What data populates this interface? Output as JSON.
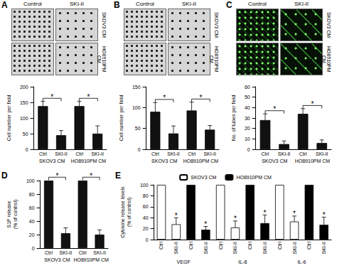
{
  "chart_data": [
    {
      "panel_label": "A",
      "type": "bar",
      "image_labels": {
        "columns": [
          "Control",
          "SKI-II"
        ],
        "rows": [
          "SKOV3 CM",
          "HO8910PM CM"
        ]
      },
      "y_label": "Cell number per field",
      "categories": [
        "Ctrl",
        "SKI-II",
        "Ctrl",
        "SKI-II"
      ],
      "group_labels": [
        "SKOV3 CM",
        "HO8910PM CM"
      ],
      "values": [
        138,
        45,
        138,
        50
      ],
      "errors": [
        15,
        15,
        15,
        25
      ],
      "color": "#111111",
      "ylim": [
        0,
        200
      ],
      "yticks": [
        0,
        50,
        100,
        150,
        200
      ],
      "annotations": [
        {
          "from": 0,
          "to": 1,
          "text": "*"
        },
        {
          "from": 2,
          "to": 3,
          "text": "*"
        }
      ]
    },
    {
      "panel_label": "B",
      "type": "bar",
      "image_labels": {
        "columns": [
          "Control",
          "SKI-II"
        ],
        "rows": [
          "SKOV3 CM",
          "HO8910PM CM"
        ]
      },
      "y_label": "Cell number per field",
      "categories": [
        "Ctrl",
        "SKI-II",
        "Ctrl",
        "SKI-II"
      ],
      "group_labels": [
        "SKOV3 CM",
        "HO8910PM CM"
      ],
      "values": [
        90,
        38,
        93,
        47
      ],
      "errors": [
        22,
        18,
        20,
        10
      ],
      "color": "#111111",
      "ylim": [
        0,
        150
      ],
      "yticks": [
        0,
        50,
        100,
        150
      ],
      "annotations": [
        {
          "from": 0,
          "to": 1,
          "text": "*"
        },
        {
          "from": 2,
          "to": 3,
          "text": "*"
        }
      ]
    },
    {
      "panel_label": "C",
      "type": "bar",
      "image_labels": {
        "columns": [
          "Control",
          "SKI-II"
        ],
        "rows": [
          "SKOV3 CM",
          "HO8910PM CM"
        ]
      },
      "y_label": "No. of tubes per field",
      "categories": [
        "Ctrl",
        "SKI-II",
        "Ctrl",
        "SKI-II"
      ],
      "group_labels": [
        "SKOV3 CM",
        "HO8910PM CM"
      ],
      "values": [
        28,
        5,
        34,
        6
      ],
      "errors": [
        6,
        3,
        5,
        3
      ],
      "color": "#111111",
      "ylim": [
        0,
        60
      ],
      "yticks": [
        0,
        10,
        20,
        30,
        40,
        50,
        60
      ],
      "annotations": [
        {
          "from": 0,
          "to": 1,
          "text": "*"
        },
        {
          "from": 2,
          "to": 3,
          "text": "*"
        }
      ]
    },
    {
      "panel_label": "D",
      "type": "bar",
      "y_label": "S1P release\n(% of control)",
      "categories": [
        "Ctrl",
        "SKI-II",
        "Ctrl",
        "SKI-II"
      ],
      "group_labels": [
        "SKOV3 CM",
        "HO8910PM CM"
      ],
      "values": [
        100,
        22,
        100,
        20
      ],
      "errors": [
        0,
        8,
        0,
        7
      ],
      "color": "#111111",
      "ylim": [
        0,
        100
      ],
      "yticks": [
        0,
        20,
        40,
        60,
        80,
        100
      ],
      "annotations": [
        {
          "from": 0,
          "to": 1,
          "text": "*"
        },
        {
          "from": 2,
          "to": 3,
          "text": "*"
        }
      ]
    },
    {
      "panel_label": "E",
      "type": "bar",
      "y_label": "Cytokine release levels\n(% of control)",
      "categories": [
        "Ctrl",
        "SKI-II",
        "Ctrl",
        "SKI-II",
        "Ctrl",
        "SKI-II",
        "Ctrl",
        "SKI-II",
        "Ctrl",
        "SKI-II",
        "Ctrl",
        "SKI-II"
      ],
      "group_labels": [
        "VEGF",
        "IL-8",
        "IL-6"
      ],
      "series": [
        {
          "name": "SKOV3 CM",
          "color": "#ffffff",
          "values": [
            100,
            28,
            null,
            null,
            100,
            22,
            null,
            null,
            100,
            33,
            null,
            null
          ],
          "errors": [
            0,
            12,
            null,
            null,
            0,
            12,
            null,
            null,
            0,
            10,
            null,
            null
          ]
        },
        {
          "name": "HO8910PM CM",
          "color": "#000000",
          "values": [
            null,
            null,
            100,
            18,
            null,
            null,
            100,
            30,
            null,
            null,
            100,
            27
          ],
          "errors": [
            null,
            null,
            0,
            6,
            null,
            null,
            0,
            15,
            null,
            null,
            0,
            14
          ]
        }
      ],
      "legend": "top",
      "ylim": [
        0,
        100
      ],
      "yticks": [
        0,
        20,
        40,
        60,
        80,
        100
      ],
      "annotations": [
        {
          "category": 1,
          "series": 0,
          "text": "*"
        },
        {
          "category": 3,
          "series": 1,
          "text": "*"
        },
        {
          "category": 5,
          "series": 0,
          "text": "*"
        },
        {
          "category": 7,
          "series": 1,
          "text": "*"
        },
        {
          "category": 9,
          "series": 0,
          "text": "*"
        },
        {
          "category": 11,
          "series": 1,
          "text": "*"
        }
      ]
    }
  ]
}
